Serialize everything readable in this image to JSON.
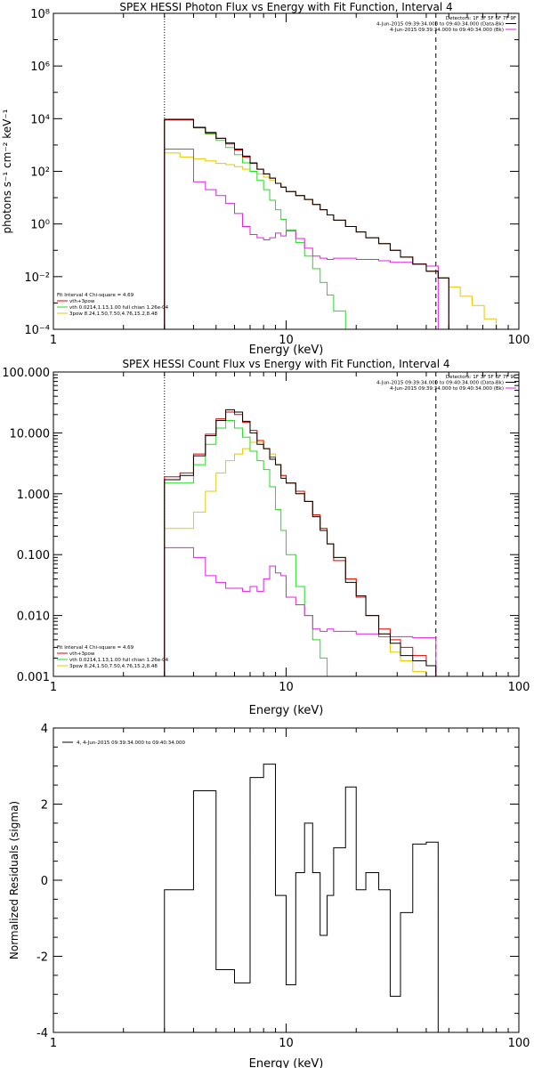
{
  "colors": {
    "black": "#000000",
    "red": "#e00000",
    "green": "#22dd22",
    "yellow": "#e8c800",
    "magenta": "#e020e0",
    "background": "#ffffff"
  },
  "chart_data": [
    {
      "type": "line",
      "step": true,
      "title": "SPEX HESSI Photon Flux vs Energy with Fit Function, Interval 4",
      "xlabel": "Energy (keV)",
      "ylabel": "photons s⁻¹ cm⁻² keV⁻¹",
      "xscale": "log",
      "yscale": "log",
      "xlim": [
        1,
        100
      ],
      "ylim": [
        0.0001,
        100000000
      ],
      "xticks": [
        "1",
        "10",
        "100"
      ],
      "yticks": [
        "10⁻⁴",
        "10⁻²",
        "10⁰",
        "10²",
        "10⁴",
        "10⁶",
        "10⁸"
      ],
      "vlines": [
        {
          "x": 3.0,
          "style": "dotted"
        },
        {
          "x": 44.0,
          "style": "dashed"
        }
      ],
      "legend_top_right": [
        {
          "text": "Detectors: 1F 3F 5F 6F 7F 9F",
          "color": ""
        },
        {
          "text": "4-Jun-2015 09:39:34.000 to 09:40:34.000 (Data-Bk)",
          "color": "#000000"
        },
        {
          "text": "4-Jun-2015 09:39:34.000 to 09:40:34.000 (Bk)",
          "color": "#e020e0"
        }
      ],
      "legend_bottom_left": [
        {
          "text": "Fit Interval 4   Chi-square = 4.69",
          "color": ""
        },
        {
          "text": "vth+3pow",
          "color": "#e00000"
        },
        {
          "text": "vth 0.0214,1.13,1.00  full chian 1.26e-04",
          "color": "#22dd22"
        },
        {
          "text": "3pow 8.24,1.50,7.50,4.76,15.2,8.48",
          "color": "#e8c800"
        }
      ],
      "edges": [
        3.0,
        3.5,
        4.0,
        4.5,
        5.0,
        5.5,
        6.0,
        6.5,
        7.0,
        7.5,
        8.0,
        8.5,
        9.0,
        9.5,
        10.0,
        11.0,
        12.0,
        13.0,
        14.0,
        15.0,
        16.0,
        18.0,
        20.0,
        22.0,
        25.0,
        28.0,
        31.0,
        35.0,
        40.0,
        45.0,
        50.0,
        56.0,
        63.0,
        71.0,
        80.0
      ],
      "series": [
        {
          "name": "vth+3pow",
          "color": "#e00000",
          "values": [
            9000,
            9000,
            4500,
            2800,
            1800,
            1100,
            650,
            350,
            200,
            120,
            80,
            55,
            35,
            25,
            17,
            12,
            8.5,
            5.5,
            3.5,
            2.2,
            1.4,
            0.8,
            0.5,
            0.3,
            0.18,
            0.1,
            0.055,
            0.03,
            0.016,
            0.009
          ]
        },
        {
          "name": "Data-Bk",
          "color": "#000000",
          "values": [
            9500,
            9500,
            4700,
            3000,
            1800,
            1200,
            700,
            380,
            210,
            120,
            80,
            55,
            35,
            25,
            17,
            12,
            8.5,
            5.5,
            3.5,
            2.2,
            1.4,
            0.8,
            0.5,
            0.3,
            0.18,
            0.1,
            0.055,
            0.03,
            0.016,
            0.009
          ]
        },
        {
          "name": "vth",
          "color": "#22dd22",
          "values": [
            9000,
            9000,
            4500,
            2600,
            1500,
            800,
            430,
            210,
            100,
            45,
            20,
            8,
            3.5,
            1.5,
            0.6,
            0.2,
            0.06,
            0.02,
            0.006,
            0.002,
            0.0005,
            0.0001
          ]
        },
        {
          "name": "3pow",
          "color": "#e8c800",
          "values": [
            500,
            350,
            300,
            250,
            200,
            180,
            150,
            120,
            100,
            80,
            60,
            45,
            35,
            25,
            17,
            12,
            8.5,
            5.5,
            3.5,
            2.2,
            1.4,
            0.8,
            0.5,
            0.3,
            0.18,
            0.1,
            0.055,
            0.03,
            0.016,
            0.009,
            0.004,
            0.0018,
            0.0008,
            0.00025
          ]
        },
        {
          "name": "Bk",
          "color": "#e020e0",
          "values": [
            700,
            700,
            40,
            20,
            12,
            6,
            2.5,
            0.8,
            0.4,
            0.3,
            0.25,
            0.3,
            0.45,
            0.35,
            0.55,
            0.28,
            0.12,
            0.06,
            0.05,
            0.045,
            0.05,
            0.05,
            0.045,
            0.045,
            0.04,
            0.035,
            0.035,
            0.03,
            0.025
          ]
        }
      ]
    },
    {
      "type": "line",
      "step": true,
      "title": "SPEX HESSI Count Flux vs Energy with Fit Function, Interval 4",
      "xlabel": "Energy (keV)",
      "ylabel": "",
      "xscale": "log",
      "yscale": "log",
      "xlim": [
        1,
        100
      ],
      "ylim": [
        0.001,
        100
      ],
      "xticks": [
        "1",
        "10",
        "100"
      ],
      "yticks": [
        "0.001",
        "0.010",
        "0.100",
        "1.000",
        "10.000",
        "100.000"
      ],
      "vlines": [
        {
          "x": 3.0,
          "style": "dotted"
        },
        {
          "x": 44.0,
          "style": "dashed"
        }
      ],
      "legend_top_right": [
        {
          "text": "Detectors: 1F 3F 5F 6F 7F 9F",
          "color": ""
        },
        {
          "text": "4-Jun-2015 09:39:34.000 to 09:40:34.000 (Data-Bk)",
          "color": "#000000"
        },
        {
          "text": "4-Jun-2015 09:39:34.000 to 09:40:34.000 (Bk)",
          "color": "#e020e0"
        }
      ],
      "legend_bottom_left": [
        {
          "text": "Fit Interval 4   Chi-square = 4.69",
          "color": ""
        },
        {
          "text": "vth+3pow",
          "color": "#e00000"
        },
        {
          "text": "vth 0.0214,1.13,1.00  full chian 1.26e-04",
          "color": "#22dd22"
        },
        {
          "text": "3pow 8.24,1.50,7.50,4.76,15.2,8.48",
          "color": "#e8c800"
        }
      ],
      "edges": [
        3.0,
        3.5,
        4.0,
        4.5,
        5.0,
        5.5,
        6.0,
        6.5,
        7.0,
        7.5,
        8.0,
        8.5,
        9.0,
        9.5,
        10.0,
        11.0,
        12.0,
        13.0,
        14.0,
        15.0,
        16.0,
        18.0,
        20.0,
        22.0,
        25.0,
        28.0,
        31.0,
        35.0,
        40.0,
        44.0
      ],
      "series": [
        {
          "name": "vth+3pow",
          "color": "#e00000",
          "values": [
            1.9,
            2.2,
            4.5,
            9.5,
            17,
            22,
            20,
            15,
            11,
            7.5,
            5.5,
            4.0,
            3.0,
            2.0,
            1.5,
            1.1,
            0.75,
            0.45,
            0.27,
            0.15,
            0.08,
            0.04,
            0.02,
            0.01,
            0.006,
            0.004,
            0.003,
            0.0022,
            0.0015
          ]
        },
        {
          "name": "Data-Bk",
          "color": "#000000",
          "values": [
            1.7,
            2.0,
            4.2,
            9.0,
            16,
            24,
            22,
            15.5,
            10,
            6.5,
            5.5,
            3.7,
            3.0,
            1.8,
            1.5,
            1.0,
            0.75,
            0.42,
            0.25,
            0.15,
            0.09,
            0.035,
            0.021,
            0.01,
            0.005,
            0.0035,
            0.0022,
            0.0018,
            0.0015
          ]
        },
        {
          "name": "vth",
          "color": "#22dd22",
          "values": [
            1.5,
            1.5,
            3.0,
            6.5,
            12,
            16,
            12,
            8.5,
            5.0,
            3.5,
            2.5,
            1.3,
            0.55,
            0.25,
            0.1,
            0.03,
            0.01,
            0.004,
            0.002,
            0.001
          ]
        },
        {
          "name": "3pow",
          "color": "#e8c800",
          "values": [
            0.27,
            0.27,
            0.5,
            1.1,
            2.2,
            3.5,
            4.5,
            5.5,
            7.0,
            7.0,
            5.5,
            4.5,
            3.0,
            2.0,
            1.5,
            1.0,
            0.75,
            0.45,
            0.27,
            0.15,
            0.09,
            0.04,
            0.021,
            0.01,
            0.005,
            0.0025,
            0.0018,
            0.0012,
            0.001
          ]
        },
        {
          "name": "Bk",
          "color": "#e020e0",
          "values": [
            0.13,
            0.13,
            0.09,
            0.045,
            0.035,
            0.028,
            0.028,
            0.025,
            0.03,
            0.025,
            0.04,
            0.065,
            0.05,
            0.045,
            0.02,
            0.015,
            0.01,
            0.006,
            0.0055,
            0.006,
            0.0055,
            0.0055,
            0.005,
            0.005,
            0.0045,
            0.0045,
            0.0045,
            0.0043,
            0.0043
          ]
        }
      ]
    },
    {
      "type": "line",
      "step": true,
      "title": "",
      "xlabel": "Energy (keV)",
      "ylabel": "Normalized Residuals (sigma)",
      "xscale": "log",
      "yscale": "linear",
      "xlim": [
        1,
        100
      ],
      "ylim": [
        -4,
        4
      ],
      "xticks": [
        "1",
        "10",
        "100"
      ],
      "yticks": [
        "-4",
        "-2",
        "0",
        "2",
        "4"
      ],
      "vlines": [],
      "legend_top_left": [
        {
          "text": "4,  4-Jun-2015 09:39:34.000 to 09:40:34.000",
          "color": "#000000"
        }
      ],
      "edges": [
        3.0,
        4.0,
        5.0,
        6.0,
        7.0,
        8.0,
        9.0,
        10.0,
        11.0,
        12.0,
        13.0,
        14.0,
        15.0,
        16.0,
        18.0,
        20.0,
        22.0,
        25.0,
        28.0,
        31.0,
        35.0,
        40.0,
        45.0
      ],
      "series": [
        {
          "name": "4,  4-Jun-2015 09:39:34.000 to 09:40:34.000",
          "color": "#000000",
          "values": [
            -0.25,
            2.35,
            -2.35,
            -2.7,
            2.7,
            3.05,
            -0.4,
            -2.75,
            0.2,
            1.5,
            0.2,
            -1.45,
            -0.4,
            0.85,
            2.45,
            -0.25,
            0.2,
            -0.25,
            -3.05,
            -0.85,
            0.95,
            1.0
          ]
        }
      ]
    }
  ]
}
